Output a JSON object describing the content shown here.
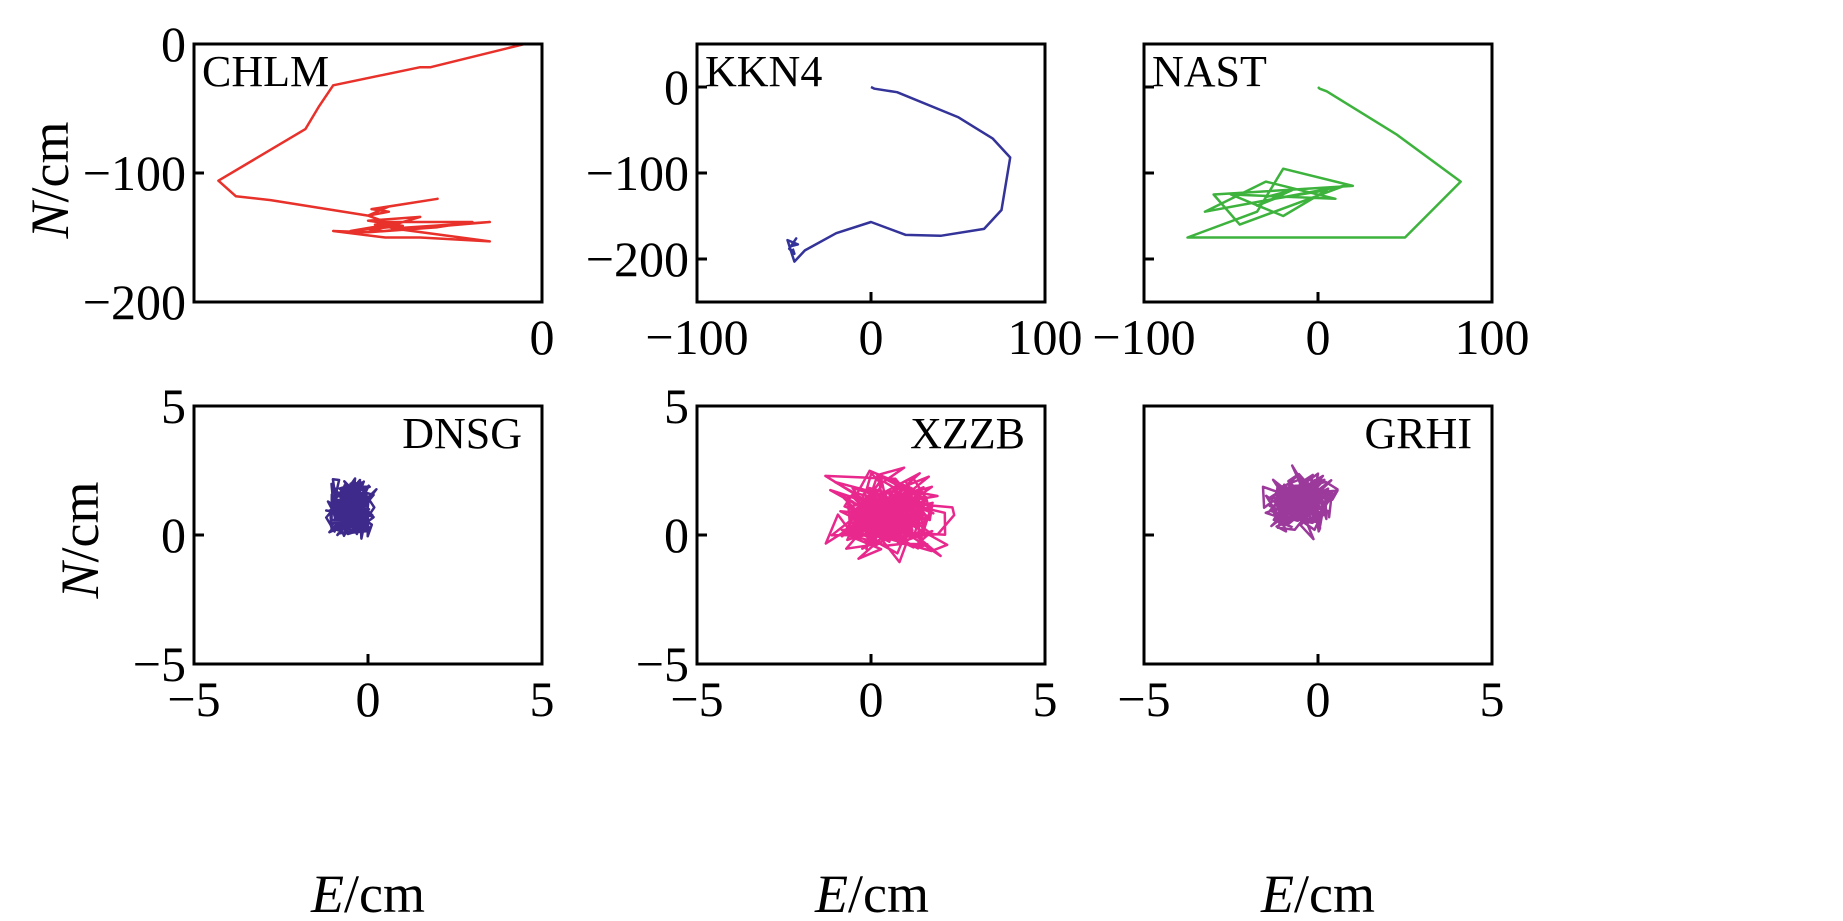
{
  "figure": {
    "ylabel": {
      "italic": "N",
      "unit": "/cm"
    },
    "xlabel": {
      "italic": "E",
      "unit": "/cm"
    }
  },
  "chart_data": [
    {
      "type": "line",
      "station": "CHLM",
      "color": "#e8312a",
      "xlim": [
        -100,
        0
      ],
      "ylim": [
        -200,
        0
      ],
      "xticks": [
        0
      ],
      "xtick_labels": [
        "0"
      ],
      "yticks": [
        0,
        -100,
        -200
      ],
      "ytick_labels": [
        "0",
        "−100",
        "−200"
      ],
      "x": [
        -5,
        -32,
        -35,
        -60,
        -64,
        -68,
        -93,
        -88,
        -78,
        -50,
        -44,
        -49,
        -30,
        -44,
        -50,
        -45,
        -20,
        -30,
        -50,
        -35,
        -50,
        -40,
        -55,
        -42,
        -48,
        -44,
        -46,
        -43,
        -15,
        -50,
        -60,
        -45,
        -35,
        -15,
        -40,
        -48,
        -42,
        -44
      ],
      "y": [
        0,
        -18,
        -18,
        -32,
        -48,
        -66,
        -106,
        -118,
        -121,
        -133,
        -130,
        -128,
        -120,
        -126,
        -133,
        -138,
        -138,
        -142,
        -146,
        -134,
        -137,
        -141,
        -145,
        -139,
        -140,
        -142,
        -138,
        -143,
        -138,
        -146,
        -145,
        -150,
        -150,
        -153,
        -144,
        -140,
        -141,
        -140
      ],
      "x_offset": 0
    },
    {
      "type": "line",
      "station": "KKN4",
      "color": "#333399",
      "xlim": [
        -100,
        100
      ],
      "ylim": [
        -250,
        50
      ],
      "xticks": [
        -100,
        0,
        100
      ],
      "xtick_labels": [
        "−100",
        "0",
        "100"
      ],
      "yticks": [
        0,
        -100,
        -200
      ],
      "ytick_labels": [
        "0",
        "−100",
        "−200"
      ],
      "x": [
        0,
        2,
        15,
        50,
        70,
        80,
        75,
        65,
        40,
        20,
        0,
        -20,
        -38,
        -44,
        -45,
        -48,
        -42,
        -46,
        -43,
        -47,
        -44,
        -45
      ],
      "y": [
        0,
        -2,
        -6,
        -35,
        -60,
        -82,
        -143,
        -165,
        -173,
        -172,
        -157,
        -170,
        -190,
        -203,
        -197,
        -178,
        -183,
        -185,
        -176,
        -188,
        -194,
        -188
      ]
    },
    {
      "type": "line",
      "station": "NAST",
      "color": "#3db33d",
      "xlim": [
        -100,
        100
      ],
      "ylim": [
        -250,
        50
      ],
      "xticks": [
        -100,
        0,
        100
      ],
      "xtick_labels": [
        "−100",
        "0",
        "100"
      ],
      "yticks": [
        0,
        -100,
        -200
      ],
      "ytick_labels": [],
      "x": [
        0,
        1,
        5,
        45,
        82,
        50,
        -15,
        -75,
        -35,
        -20,
        20,
        -60,
        -45,
        15,
        -65,
        -30,
        10,
        -50,
        -20,
        5,
        -25,
        -35,
        -15,
        -30
      ],
      "y": [
        0,
        -2,
        -5,
        -55,
        -110,
        -175,
        -175,
        -175,
        -145,
        -95,
        -115,
        -125,
        -160,
        -115,
        -145,
        -110,
        -130,
        -125,
        -150,
        -120,
        -130,
        -138,
        -120,
        -128
      ]
    },
    {
      "type": "line",
      "station": "DNSG",
      "color": "#3d2a8a",
      "xlim": [
        -5,
        5
      ],
      "ylim": [
        -5,
        5
      ],
      "xticks": [
        -5,
        0,
        5
      ],
      "xtick_labels": [
        "−5",
        "0",
        "5"
      ],
      "yticks": [
        -5,
        0,
        5
      ],
      "ytick_labels": [
        "−5",
        "0",
        "5"
      ],
      "cluster": {
        "cx": -0.5,
        "cy": 1.0,
        "sx": 1.4,
        "sy": 2.2,
        "n": 320,
        "seed": 11
      }
    },
    {
      "type": "line",
      "station": "XZZB",
      "color": "#e8288c",
      "xlim": [
        -5,
        5
      ],
      "ylim": [
        -5,
        5
      ],
      "xticks": [
        -5,
        0,
        5
      ],
      "xtick_labels": [
        "−5",
        "0",
        "5"
      ],
      "yticks": [
        -5,
        0,
        5
      ],
      "ytick_labels": [
        "−5",
        "0",
        "5"
      ],
      "cluster": {
        "cx": 0.5,
        "cy": 0.8,
        "sx": 3.4,
        "sy": 3.2,
        "n": 300,
        "seed": 23
      }
    },
    {
      "type": "line",
      "station": "GRHI",
      "color": "#9b3a9b",
      "xlim": [
        -5,
        5
      ],
      "ylim": [
        -5,
        5
      ],
      "xticks": [
        -5,
        0,
        5
      ],
      "xtick_labels": [
        "−5",
        "0",
        "5"
      ],
      "yticks": [
        -5,
        0,
        5
      ],
      "ytick_labels": [],
      "cluster": {
        "cx": -0.5,
        "cy": 1.2,
        "sx": 1.9,
        "sy": 2.4,
        "n": 260,
        "seed": 37
      }
    }
  ]
}
